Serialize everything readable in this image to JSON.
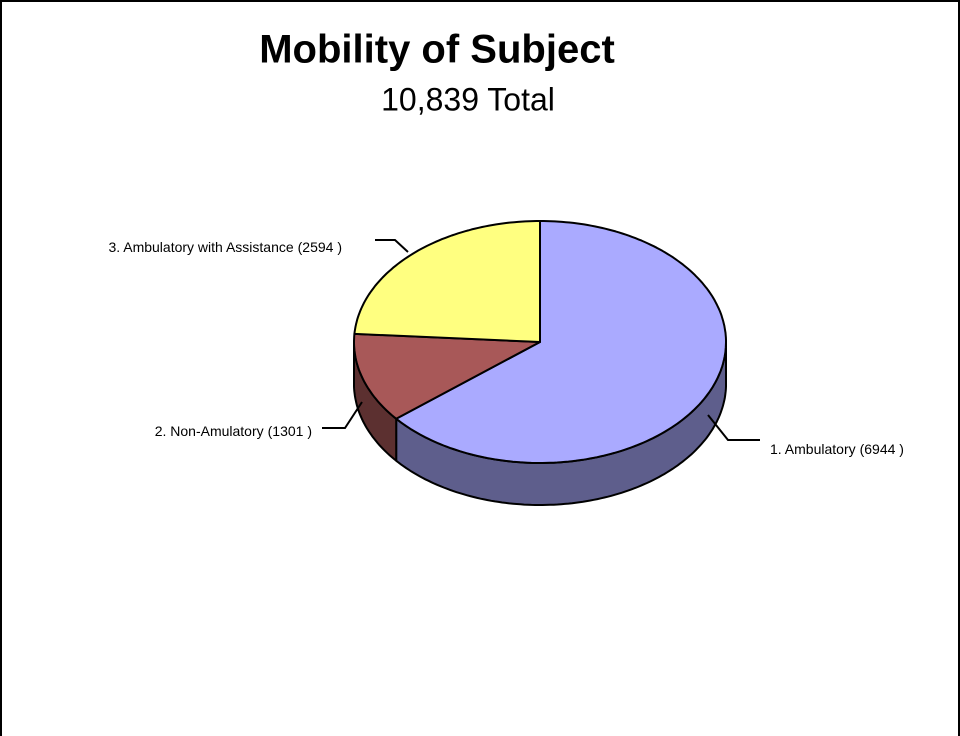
{
  "chart_data": {
    "type": "pie3d",
    "title": "Mobility of Subject",
    "subtitle": "10,839 Total",
    "categories": [
      "1. Ambulatory",
      "2. Non-Amulatory",
      "3. Ambulatory with Assistance"
    ],
    "values": [
      6944,
      1301,
      2594
    ],
    "value_labels": [
      "(6944 )",
      "(1301 )",
      "(2594 )"
    ],
    "colors": [
      "#aaaaff",
      "#a85858",
      "#ffff80"
    ]
  }
}
